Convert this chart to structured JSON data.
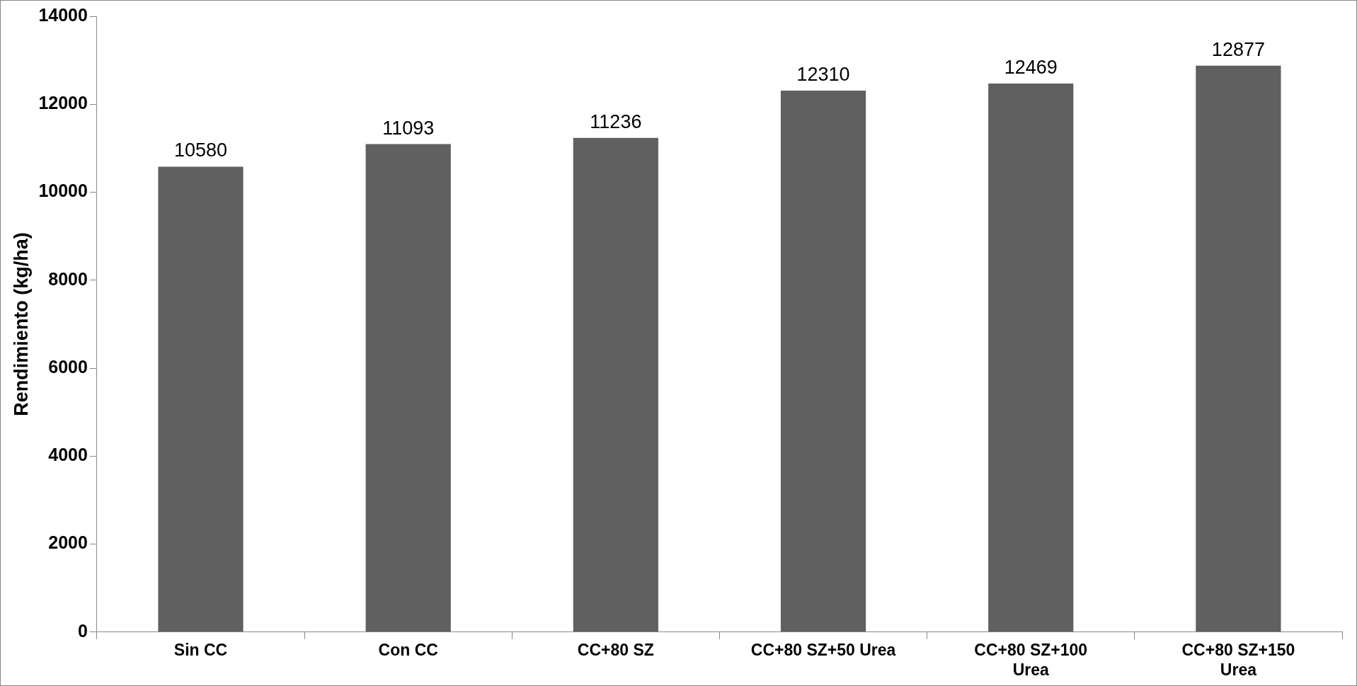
{
  "chart_data": {
    "type": "bar",
    "ylabel": "Rendimiento (kg/ha)",
    "categories": [
      "Sin CC",
      "Con CC",
      "CC+80 SZ",
      "CC+80 SZ+50 Urea",
      "CC+80 SZ+100 Urea",
      "CC+80 SZ+150 Urea"
    ],
    "values": [
      10580,
      11093,
      11236,
      12310,
      12469,
      12877
    ],
    "color": "#606060",
    "ylim": [
      0,
      14000
    ],
    "yticks": [
      0,
      2000,
      4000,
      6000,
      8000,
      10000,
      12000,
      14000
    ],
    "grid": false,
    "legend": false,
    "data_labels": true
  }
}
